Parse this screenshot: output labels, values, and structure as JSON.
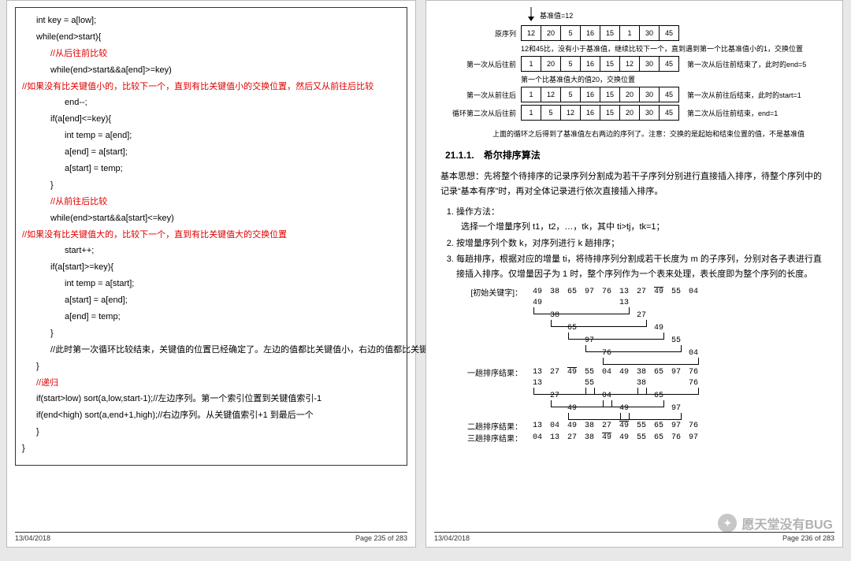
{
  "left_page": {
    "code": [
      {
        "cls": "ind1",
        "text": "int key = a[low];"
      },
      {
        "cls": "ind1",
        "text": "while(end>start){"
      },
      {
        "cls": "ind2 red",
        "text": "//从后往前比较"
      },
      {
        "cls": "ind2",
        "text": "while(end>start&&a[end]>=key)"
      },
      {
        "cls": "red",
        "text": "//如果没有比关键值小的，比较下一个，直到有比关键值小的交换位置，然后又从前往后比较"
      },
      {
        "cls": "ind3",
        "text": "end--;"
      },
      {
        "cls": "ind2",
        "text": "if(a[end]<=key){"
      },
      {
        "cls": "ind3",
        "text": "int temp = a[end];"
      },
      {
        "cls": "ind3",
        "text": "a[end] = a[start];"
      },
      {
        "cls": "ind3",
        "text": "a[start] = temp;"
      },
      {
        "cls": "ind2",
        "text": "}"
      },
      {
        "cls": "ind2 red",
        "text": "//从前往后比较"
      },
      {
        "cls": "ind2",
        "text": "while(end>start&&a[start]<=key)"
      },
      {
        "cls": "red",
        "text": "//如果没有比关键值大的，比较下一个，直到有比关键值大的交换位置"
      },
      {
        "cls": "ind3",
        "text": "start++;"
      },
      {
        "cls": "ind2",
        "text": "if(a[start]>=key){"
      },
      {
        "cls": "ind3",
        "text": "int temp = a[start];"
      },
      {
        "cls": "ind3",
        "text": "a[start] = a[end];"
      },
      {
        "cls": "ind3",
        "text": "a[end] = temp;"
      },
      {
        "cls": "ind2",
        "text": "}"
      },
      {
        "cls": "ind2",
        "text": "//此时第一次循环比较结束，关键值的位置已经确定了。左边的值都比关键值小，右边的值都比关键值大，但是两边的顺序还有可能是不一样的，进行下面的递归调用"
      },
      {
        "cls": "ind1",
        "text": "}"
      },
      {
        "cls": "ind1 red",
        "text": "//递归"
      },
      {
        "cls": "ind1",
        "text": "if(start>low) sort(a,low,start-1);//左边序列。第一个索引位置到关键值索引-1"
      },
      {
        "cls": "ind1",
        "text": "if(end<high) sort(a,end+1,high);//右边序列。从关键值索引+1 到最后一个"
      },
      {
        "cls": "ind1",
        "text": "}"
      },
      {
        "cls": "",
        "text": "}"
      }
    ],
    "footer_date": "13/04/2018",
    "footer_page": "Page 235 of 283"
  },
  "right_page": {
    "pivot_label": "基准值=12",
    "rows": [
      {
        "label": "原序列",
        "cells": [
          "12",
          "20",
          "5",
          "16",
          "15",
          "1",
          "30",
          "45"
        ],
        "note": ""
      },
      {
        "label": "",
        "note_above": "12和45比，没有小于基准值，继续比较下一个，直到遇到第一个比基准值小的1，交换位置"
      },
      {
        "label": "第一次从后往前",
        "cells": [
          "1",
          "20",
          "5",
          "16",
          "15",
          "12",
          "30",
          "45"
        ],
        "note": "第一次从后往前结束了，此时的end=5"
      },
      {
        "label": "",
        "note_above": "第一个比基准值大的值20，交换位置"
      },
      {
        "label": "第一次从前往后",
        "cells": [
          "1",
          "12",
          "5",
          "16",
          "15",
          "20",
          "30",
          "45"
        ],
        "note": "第一次从前往后结束，此时的start=1"
      },
      {
        "label": "循环第二次从后往前",
        "cells": [
          "1",
          "5",
          "12",
          "16",
          "15",
          "20",
          "30",
          "45"
        ],
        "note": "第二次从后往前结束，end=1"
      }
    ],
    "sum_note": "上面的循环之后得到了基准值左右两边的序列了。注意：交换的是起始和结束位置的值，不是基准值",
    "section": "21.1.1.　希尔排序算法",
    "idea": "基本思想：先将整个待排序的记录序列分割成为若干子序列分别进行直接插入排序，待整个序列中的记录“基本有序”时，再对全体记录进行依次直接插入排序。",
    "steps": [
      "操作方法：\n选择一个增量序列 t1，t2，…，tk，其中 ti>tj，tk=1；",
      "按增量序列个数 k，对序列进行 k 趟排序；",
      "每趟排序，根据对应的增量 ti，将待排序列分割成若干长度为 m 的子序列，分别对各子表进行直接插入排序。仅增量因子为 1 时，整个序列作为一个表来处理，表长度即为整个序列的长度。"
    ],
    "shell": {
      "init_label": "[初始关键字]：",
      "init": [
        "49",
        "38",
        "65",
        "97",
        "76",
        "13",
        "27",
        "49",
        "55",
        "04"
      ],
      "mid1": [
        [
          "49",
          "",
          "",
          "",
          "",
          "13",
          "",
          "",
          "",
          ""
        ],
        [
          "",
          "38",
          "",
          "",
          "",
          "",
          "27",
          "",
          "",
          ""
        ],
        [
          "",
          "",
          "65",
          "",
          "",
          "",
          "",
          "49",
          "",
          ""
        ],
        [
          "",
          "",
          "",
          "97",
          "",
          "",
          "",
          "",
          "55",
          ""
        ],
        [
          "",
          "",
          "",
          "",
          "76",
          "",
          "",
          "",
          "",
          "04"
        ]
      ],
      "pass1_label": "一趟排序结果：",
      "pass1": [
        "13",
        "27",
        "49",
        "55",
        "04",
        "49",
        "38",
        "65",
        "97",
        "76"
      ],
      "mid2": [
        [
          "13",
          "",
          "",
          "55",
          "",
          "",
          "38",
          "",
          "",
          "76"
        ],
        [
          "",
          "27",
          "",
          "",
          "04",
          "",
          "",
          "65",
          "",
          ""
        ],
        [
          "",
          "",
          "49",
          "",
          "",
          "49",
          "",
          "",
          "97",
          ""
        ]
      ],
      "pass2_label": "二趟排序结果：",
      "pass2": [
        "13",
        "04",
        "49",
        "38",
        "27",
        "49",
        "55",
        "65",
        "97",
        "76"
      ],
      "pass3_label": "三趟排序结果：",
      "pass3": [
        "04",
        "13",
        "27",
        "38",
        "49",
        "49",
        "55",
        "65",
        "76",
        "97"
      ]
    },
    "watermark": "愿天堂没有BUG",
    "footer_date": "13/04/2018",
    "footer_page": "Page 236 of 283"
  }
}
